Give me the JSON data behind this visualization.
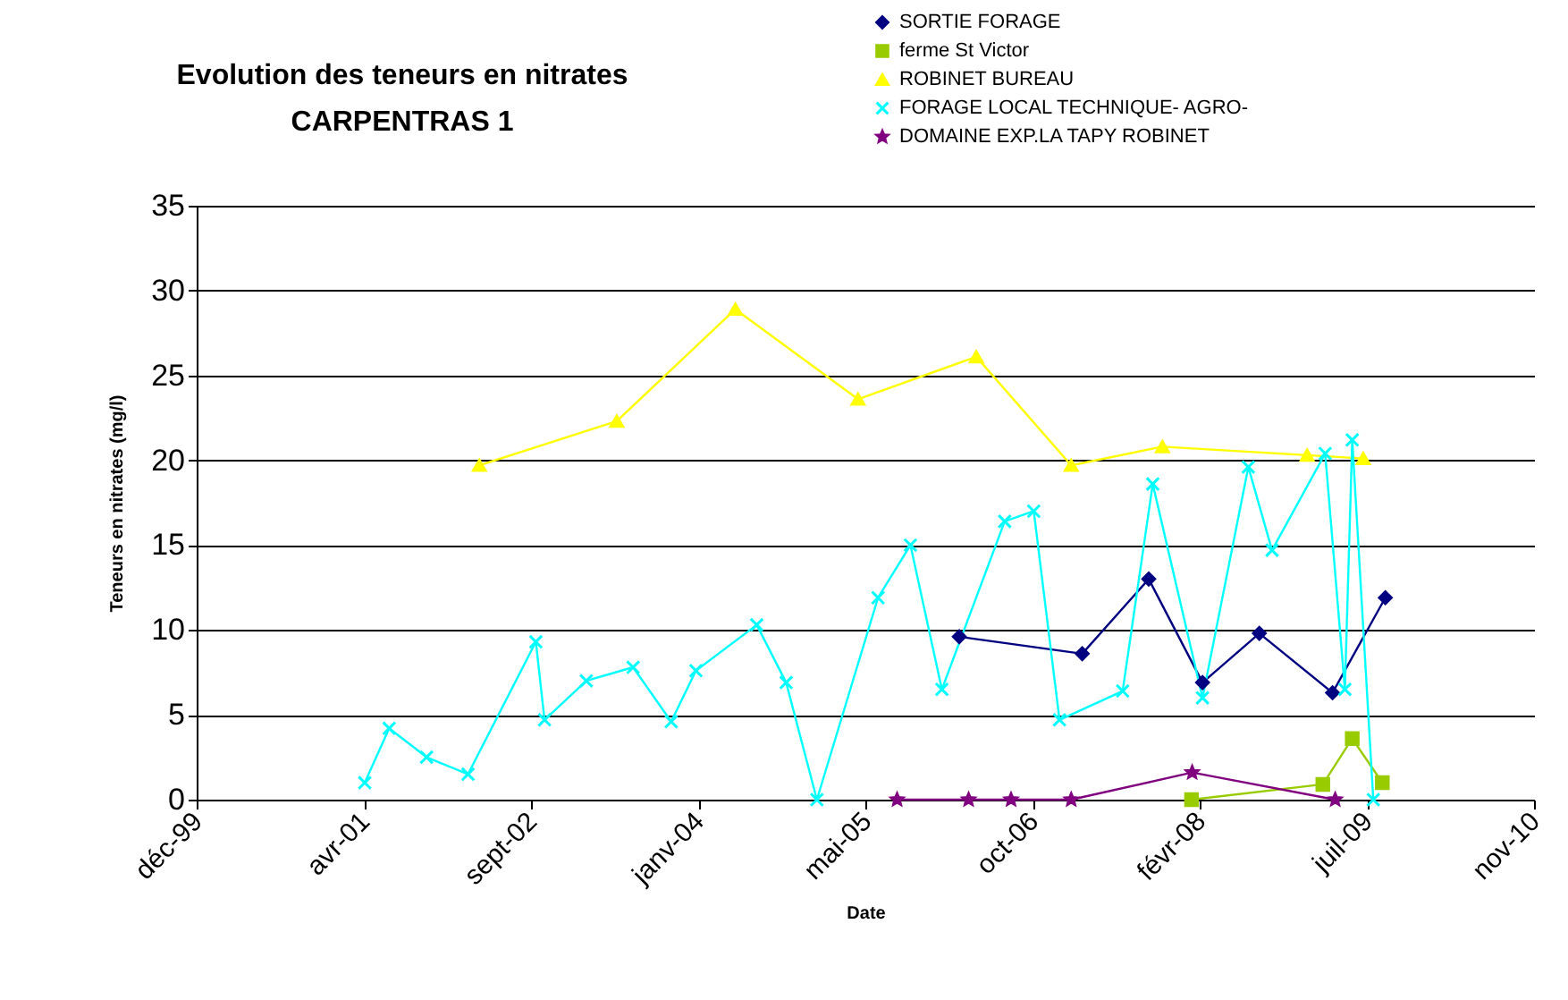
{
  "chart_data": {
    "type": "line",
    "title": "Evolution des teneurs en nitrates\nCARPENTRAS 1",
    "xlabel": "Date",
    "ylabel": "Teneurs en nitrates (mg/l)",
    "xlim": [
      "1999-12-06",
      "2010-11-20"
    ],
    "xticks": [
      {
        "value": "1999-12-06",
        "label": "déc-99"
      },
      {
        "value": "2001-04-20",
        "label": "avr-01"
      },
      {
        "value": "2002-09-02",
        "label": "sept-02"
      },
      {
        "value": "2004-01-15",
        "label": "janv-04"
      },
      {
        "value": "2005-05-30",
        "label": "mai-05"
      },
      {
        "value": "2006-10-12",
        "label": "oct-06"
      },
      {
        "value": "2008-02-24",
        "label": "févr-08"
      },
      {
        "value": "2009-07-08",
        "label": "juil-09"
      },
      {
        "value": "2010-11-20",
        "label": "nov-10"
      }
    ],
    "ylim": [
      0,
      35
    ],
    "yticks": [
      0,
      5,
      10,
      15,
      20,
      25,
      30,
      35
    ],
    "grid": "y",
    "legend": "top right",
    "series": [
      {
        "name": "SORTIE FORAGE",
        "color": "#000080",
        "marker": "diamond",
        "x": [
          "2006-03-06",
          "2007-03-09",
          "2007-09-24",
          "2008-03-03",
          "2008-08-20",
          "2009-03-27",
          "2009-09-01"
        ],
        "values": [
          9.6,
          8.6,
          13.0,
          6.9,
          9.8,
          6.3,
          11.9
        ]
      },
      {
        "name": "ferme St Victor",
        "color": "#99cc00",
        "marker": "square",
        "x": [
          "2008-01-30",
          "2009-02-26",
          "2009-05-25",
          "2009-08-23"
        ],
        "values": [
          0,
          0.9,
          3.6,
          1.0
        ]
      },
      {
        "name": "ROBINET BUREAU",
        "color": "#ffff00",
        "marker": "triangle",
        "x": [
          "2002-03-31",
          "2003-05-16",
          "2004-05-05",
          "2005-05-07",
          "2006-04-26",
          "2007-02-04",
          "2007-11-04",
          "2009-01-10",
          "2009-06-27"
        ],
        "values": [
          19.7,
          22.3,
          28.9,
          23.6,
          26.1,
          19.7,
          20.8,
          20.3,
          20.1
        ]
      },
      {
        "name": "FORAGE LOCAL TECHNIQUE- AGRO-",
        "color": "#00ffff",
        "marker": "cross",
        "x": [
          "2001-04-22",
          "2001-07-04",
          "2001-10-24",
          "2002-02-25",
          "2002-09-16",
          "2002-10-12",
          "2003-02-14",
          "2003-07-04",
          "2003-10-26",
          "2004-01-08",
          "2004-07-08",
          "2004-10-04",
          "2005-01-04",
          "2005-07-06",
          "2005-10-11",
          "2006-01-13",
          "2006-07-20",
          "2006-10-15",
          "2006-12-31",
          "2007-07-08",
          "2007-10-06",
          "2008-03-03",
          "2008-07-18",
          "2008-09-27",
          "2009-03-05",
          "2009-05-03",
          "2009-05-25",
          "2009-07-27"
        ],
        "values": [
          1.0,
          4.2,
          2.5,
          1.5,
          9.3,
          4.7,
          7.0,
          7.8,
          4.6,
          7.6,
          10.3,
          6.9,
          0,
          11.9,
          15.0,
          6.5,
          16.4,
          17.0,
          4.7,
          6.4,
          18.6,
          6.0,
          19.6,
          14.7,
          20.4,
          6.5,
          21.2,
          0
        ]
      },
      {
        "name": "DOMAINE EXP.LA TAPY ROBINET",
        "color": "#800080",
        "marker": "star",
        "x": [
          "2005-09-01",
          "2006-04-03",
          "2006-08-08",
          "2007-02-04",
          "2008-02-01",
          "2009-04-04"
        ],
        "values": [
          0,
          0,
          0,
          0,
          1.6,
          0
        ]
      }
    ]
  }
}
